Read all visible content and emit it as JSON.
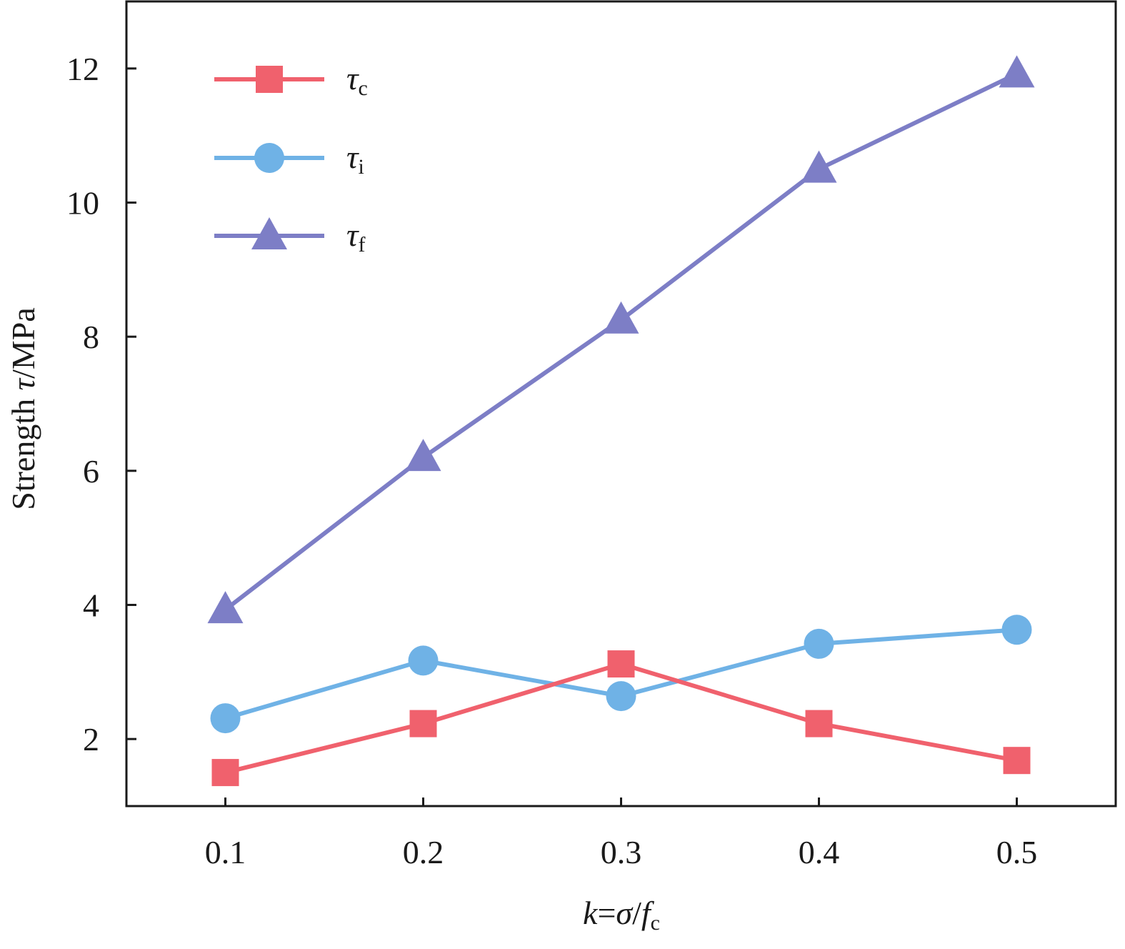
{
  "chart_data": {
    "type": "line",
    "x": [
      0.1,
      0.2,
      0.3,
      0.4,
      0.5
    ],
    "x_tick_labels": [
      "0.1",
      "0.2",
      "0.3",
      "0.4",
      "0.5"
    ],
    "y_tick_values": [
      2,
      4,
      6,
      8,
      10,
      12
    ],
    "y_tick_labels": [
      "2",
      "4",
      "6",
      "8",
      "10",
      "12"
    ],
    "xlim": [
      0.05,
      0.55
    ],
    "ylim": [
      1,
      13
    ],
    "xlabel": {
      "k": "k",
      "eq": "=",
      "sigma": "σ",
      "slash": "/",
      "f": "f",
      "sub": "c"
    },
    "ylabel": {
      "prefix": "Strength ",
      "tau": "τ",
      "suffix": "/MPa"
    },
    "legend_position": "top-left",
    "grid": false,
    "series": [
      {
        "name": "τc",
        "symbol": "τ",
        "subscript": "c",
        "marker": "square",
        "color": "#f0616d",
        "values": [
          1.5,
          2.23,
          3.12,
          2.23,
          1.68
        ]
      },
      {
        "name": "τi",
        "symbol": "τ",
        "subscript": "i",
        "marker": "circle",
        "color": "#6fb2e6",
        "values": [
          2.31,
          3.17,
          2.64,
          3.42,
          3.63
        ]
      },
      {
        "name": "τf",
        "symbol": "τ",
        "subscript": "f",
        "marker": "triangle",
        "color": "#7d7ec6",
        "values": [
          3.93,
          6.2,
          8.25,
          10.5,
          11.92
        ]
      }
    ]
  }
}
